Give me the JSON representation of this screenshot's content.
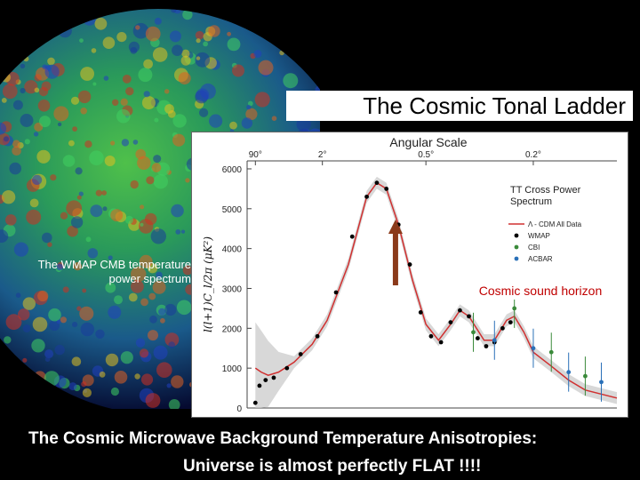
{
  "slide": {
    "title": "The Cosmic Tonal Ladder",
    "side_label_line1": "The WMAP CMB temperature",
    "side_label_line2": "power  spectrum",
    "bottom_line1": "The Cosmic Microwave Background Temperature Anisotropies:",
    "bottom_line2": "Universe is almost perfectly FLAT !!!!"
  },
  "chart_data": {
    "type": "line",
    "top_axis_title": "Angular Scale",
    "top_ticks": [
      "90°",
      "2°",
      "0.5°",
      "0.2°"
    ],
    "top_ticks_l": [
      2,
      90,
      400,
      900
    ],
    "ylabel": "l(l+1)C_l/2π (μK²)",
    "yticks": [
      0,
      1000,
      2000,
      3000,
      4000,
      5000,
      6000
    ],
    "ylim": [
      0,
      6200
    ],
    "legend_title_line1": "TT Cross Power",
    "legend_title_line2": "Spectrum",
    "legend_items": [
      {
        "label": "Λ - CDM All Data",
        "color": "#d03030",
        "kind": "line"
      },
      {
        "label": "WMAP",
        "color": "#000000",
        "kind": "point"
      },
      {
        "label": "CBI",
        "color": "#3a8a3a",
        "kind": "point"
      },
      {
        "label": "ACBAR",
        "color": "#2a70b8",
        "kind": "point"
      }
    ],
    "model_curve": {
      "l": [
        2,
        5,
        10,
        20,
        40,
        70,
        100,
        150,
        200,
        230,
        260,
        300,
        350,
        400,
        450,
        500,
        540,
        580,
        650,
        700,
        760,
        800,
        850,
        900,
        1000,
        1100,
        1200,
        1400
      ],
      "value": [
        1000,
        900,
        820,
        900,
        1150,
        1600,
        2200,
        3600,
        5300,
        5650,
        5500,
        4600,
        3200,
        2100,
        1700,
        2100,
        2450,
        2300,
        1700,
        1700,
        2200,
        2300,
        1900,
        1400,
        1050,
        700,
        450,
        250
      ]
    },
    "series": [
      {
        "name": "WMAP",
        "l": [
          2,
          4,
          8,
          15,
          30,
          50,
          80,
          120,
          160,
          200,
          230,
          260,
          300,
          340,
          380,
          420,
          460,
          500,
          540,
          580,
          620,
          660,
          700,
          740,
          780
        ],
        "value": [
          130,
          560,
          700,
          760,
          1000,
          1350,
          1800,
          2900,
          4300,
          5300,
          5650,
          5500,
          4600,
          3600,
          2400,
          1800,
          1650,
          2150,
          2450,
          2300,
          1750,
          1550,
          1650,
          2000,
          2150
        ]
      },
      {
        "name": "CBI",
        "l": [
          600,
          800,
          1000,
          1200
        ],
        "value": [
          1900,
          2500,
          1400,
          800
        ]
      },
      {
        "name": "ACBAR",
        "l": [
          700,
          900,
          1100,
          1300
        ],
        "value": [
          1700,
          1500,
          900,
          650
        ]
      }
    ],
    "annotation": "Cosmic sound horizon",
    "annotation_l": 290
  },
  "colors": {
    "model": "#d03030",
    "band": "#c8c8c8",
    "arrow": "#8b3a1a",
    "sky_base": "#1a7a3a"
  }
}
